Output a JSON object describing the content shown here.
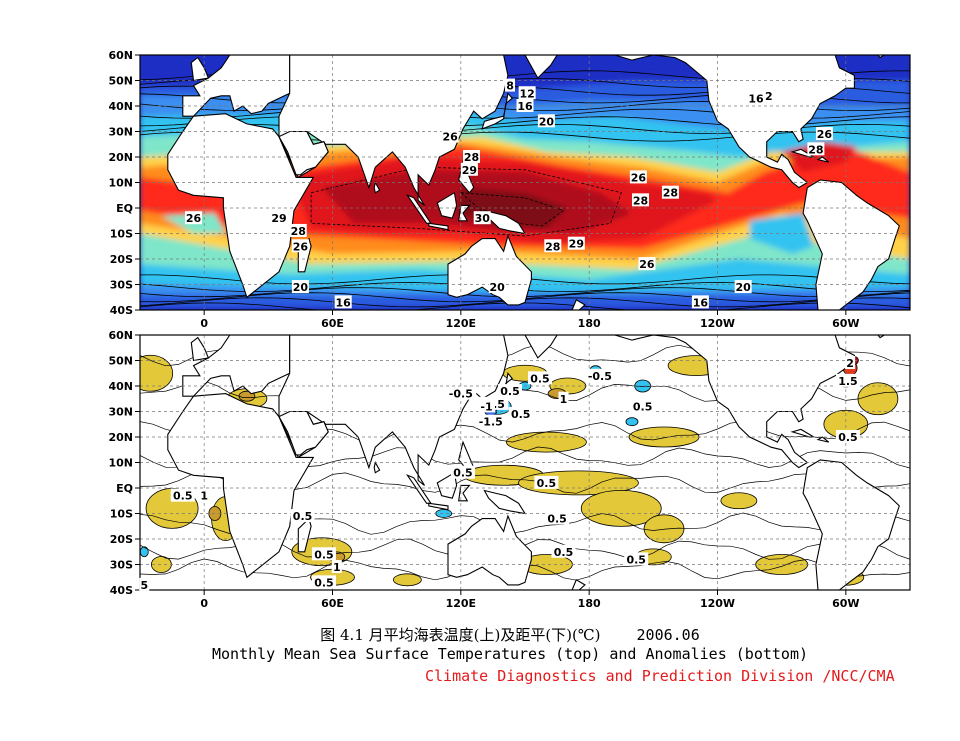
{
  "caption": {
    "chinese": "图 4.1  月平均海表温度(上)及距平(下)(℃)",
    "date": "2006.06",
    "english": "Monthly Mean Sea Surface Temperatures (top)  and Anomalies (bottom)",
    "organization": "Climate Diagnostics and Prediction Division /NCC/CMA"
  },
  "chart_data": [
    {
      "type": "heatmap",
      "title": "",
      "xlabel": "",
      "ylabel": "",
      "x_ticks": [
        "0",
        "60E",
        "120E",
        "180",
        "120W",
        "60W"
      ],
      "y_ticks": [
        "60N",
        "50N",
        "40N",
        "30N",
        "20N",
        "10N",
        "EQ",
        "10S",
        "20S",
        "30S",
        "40S"
      ],
      "xlim_lon": [
        -30,
        330
      ],
      "ylim_lat": [
        -40,
        60
      ],
      "grid": true,
      "colors": {
        "lt10": "#1f2ec4",
        "10-14": "#2b5ce0",
        "14-18": "#3b8ff0",
        "18-22": "#33c3f0",
        "22-25": "#7fe6c9",
        "25-26": "#ffd24a",
        "26-27": "#ff8c1a",
        "27-28": "#ff2a1a",
        "28-29": "#e0141e",
        "29-30": "#b0101a",
        "gt30": "#7d0a12",
        "land": "#ffffff"
      },
      "contour_labels": [
        {
          "text": "8",
          "lon": 143,
          "lat": 48
        },
        {
          "text": "12",
          "lon": 151,
          "lat": 45
        },
        {
          "text": "16",
          "lon": 150,
          "lat": 40
        },
        {
          "text": "16",
          "lon": 258,
          "lat": 43
        },
        {
          "text": "2",
          "lon": 264,
          "lat": 44
        },
        {
          "text": "20",
          "lon": 160,
          "lat": 34
        },
        {
          "text": "26",
          "lon": 115,
          "lat": 28
        },
        {
          "text": "26",
          "lon": 290,
          "lat": 29
        },
        {
          "text": "28",
          "lon": 125,
          "lat": 20
        },
        {
          "text": "29",
          "lon": 124,
          "lat": 15
        },
        {
          "text": "28",
          "lon": 286,
          "lat": 23
        },
        {
          "text": "26",
          "lon": 203,
          "lat": 12
        },
        {
          "text": "28",
          "lon": 204,
          "lat": 3
        },
        {
          "text": "28",
          "lon": 218,
          "lat": 6
        },
        {
          "text": "26",
          "lon": -5,
          "lat": -4
        },
        {
          "text": "29",
          "lon": 35,
          "lat": -4
        },
        {
          "text": "28",
          "lon": 44,
          "lat": -9
        },
        {
          "text": "26",
          "lon": 45,
          "lat": -15
        },
        {
          "text": "30",
          "lon": 130,
          "lat": -4
        },
        {
          "text": "28",
          "lon": 163,
          "lat": -15
        },
        {
          "text": "29",
          "lon": 174,
          "lat": -14
        },
        {
          "text": "26",
          "lon": 207,
          "lat": -22
        },
        {
          "text": "20",
          "lon": 45,
          "lat": -31
        },
        {
          "text": "16",
          "lon": 65,
          "lat": -37
        },
        {
          "text": "20",
          "lon": 137,
          "lat": -31
        },
        {
          "text": "20",
          "lon": 252,
          "lat": -31
        },
        {
          "text": "16",
          "lon": 232,
          "lat": -37
        }
      ]
    },
    {
      "type": "heatmap",
      "title": "",
      "xlabel": "",
      "ylabel": "",
      "x_ticks": [
        "0",
        "60E",
        "120E",
        "180",
        "120W",
        "60W"
      ],
      "y_ticks": [
        "60N",
        "50N",
        "40N",
        "30N",
        "20N",
        "10N",
        "EQ",
        "10S",
        "20S",
        "30S",
        "40S"
      ],
      "xlim_lon": [
        -30,
        330
      ],
      "ylim_lat": [
        -40,
        60
      ],
      "grid": true,
      "colors": {
        "lt-1.5": "#1f2ec4",
        "-1.5--1": "#3b6fe8",
        "-1--0.5": "#33c3f0",
        "0.5-1": "#e3c83a",
        "1-1.5": "#c99a2e",
        "1.5-2": "#e03a1a",
        "gt2": "#b0101a",
        "neutral": "#ffffff"
      },
      "contour_labels": [
        {
          "text": "0.5",
          "lon": 157,
          "lat": 43
        },
        {
          "text": "-0.5",
          "lon": 185,
          "lat": 44
        },
        {
          "text": "0.5",
          "lon": 143,
          "lat": 38
        },
        {
          "text": "1",
          "lon": 168,
          "lat": 35
        },
        {
          "text": "-0.5",
          "lon": 120,
          "lat": 37
        },
        {
          "text": "-0.5",
          "lon": 135,
          "lat": 33
        },
        {
          "text": "-1",
          "lon": 132,
          "lat": 32
        },
        {
          "text": "-1.5",
          "lon": 134,
          "lat": 26
        },
        {
          "text": "0.5",
          "lon": 148,
          "lat": 29
        },
        {
          "text": "0.5",
          "lon": 205,
          "lat": 32
        },
        {
          "text": "2",
          "lon": 302,
          "lat": 49
        },
        {
          "text": "1.5",
          "lon": 301,
          "lat": 42
        },
        {
          "text": "0.5",
          "lon": 301,
          "lat": 20
        },
        {
          "text": "0.5",
          "lon": 121,
          "lat": 6
        },
        {
          "text": "0.5",
          "lon": -10,
          "lat": -3
        },
        {
          "text": "1",
          "lon": 0,
          "lat": -3
        },
        {
          "text": "0.5",
          "lon": 160,
          "lat": 2
        },
        {
          "text": "0.5",
          "lon": 46,
          "lat": -11
        },
        {
          "text": "0.5",
          "lon": 165,
          "lat": -12
        },
        {
          "text": "0.5",
          "lon": 56,
          "lat": -26
        },
        {
          "text": "1",
          "lon": 62,
          "lat": -31
        },
        {
          "text": "0.5",
          "lon": 168,
          "lat": -25
        },
        {
          "text": "0.5",
          "lon": 202,
          "lat": -28
        },
        {
          "text": "0.5",
          "lon": 56,
          "lat": -37
        },
        {
          "text": "5",
          "lon": -28,
          "lat": -38
        }
      ]
    }
  ]
}
